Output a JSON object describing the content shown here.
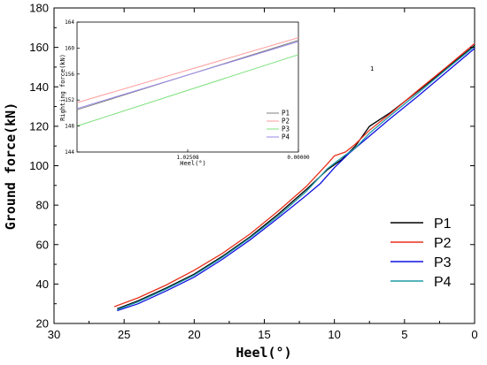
{
  "chart_data": [
    {
      "type": "line",
      "title": "",
      "xlabel": "Heel(°)",
      "ylabel": "Ground force(kN)",
      "xlim": [
        30,
        0
      ],
      "ylim": [
        20,
        180
      ],
      "x_ticks": [
        "30",
        "25",
        "20",
        "15",
        "10",
        "5",
        "0"
      ],
      "y_ticks": [
        "20",
        "40",
        "60",
        "80",
        "100",
        "120",
        "140",
        "160",
        "180"
      ],
      "legend_position": "bottom-right",
      "grid": false,
      "series": [
        {
          "name": "P1",
          "color": "#000000",
          "points": [
            [
              25.5,
              27.5
            ],
            [
              24,
              31.5
            ],
            [
              22,
              38
            ],
            [
              20,
              45
            ],
            [
              18,
              54
            ],
            [
              16,
              64
            ],
            [
              14,
              75.5
            ],
            [
              12,
              88
            ],
            [
              10.5,
              98
            ],
            [
              9.5,
              103
            ],
            [
              8.5,
              110
            ],
            [
              7.5,
              120
            ],
            [
              6,
              127
            ],
            [
              4,
              138
            ],
            [
              2,
              149.5
            ],
            [
              0,
              161
            ]
          ]
        },
        {
          "name": "P2",
          "color": "#e8301c",
          "points": [
            [
              25.7,
              28.5
            ],
            [
              24,
              33
            ],
            [
              22,
              39.5
            ],
            [
              20,
              47
            ],
            [
              18,
              55.5
            ],
            [
              16,
              65.5
            ],
            [
              14,
              77
            ],
            [
              12,
              89.5
            ],
            [
              10.5,
              101
            ],
            [
              10,
              105
            ],
            [
              9.2,
              107
            ],
            [
              8.5,
              111
            ],
            [
              7.5,
              118
            ],
            [
              6,
              126.5
            ],
            [
              4,
              138.5
            ],
            [
              2,
              150
            ],
            [
              0,
              162
            ]
          ]
        },
        {
          "name": "P3",
          "color": "#1010e0",
          "points": [
            [
              25.5,
              26.5
            ],
            [
              24,
              30
            ],
            [
              22,
              36.5
            ],
            [
              20,
              43.5
            ],
            [
              18,
              52.5
            ],
            [
              16,
              62.5
            ],
            [
              14,
              73.5
            ],
            [
              12,
              85
            ],
            [
              11,
              91
            ],
            [
              10,
              99
            ],
            [
              9,
              106
            ],
            [
              8,
              112
            ],
            [
              6,
              124
            ],
            [
              4,
              135.5
            ],
            [
              2,
              147.5
            ],
            [
              0,
              159.5
            ]
          ]
        },
        {
          "name": "P4",
          "color": "#1e9aa6",
          "points": [
            [
              25.5,
              27
            ],
            [
              24,
              31
            ],
            [
              22,
              37.5
            ],
            [
              20,
              44.5
            ],
            [
              18,
              53.5
            ],
            [
              16,
              63.5
            ],
            [
              14,
              74.5
            ],
            [
              12,
              87
            ],
            [
              10.5,
              98.5
            ],
            [
              9.5,
              104
            ],
            [
              8.5,
              109
            ],
            [
              7.5,
              116.5
            ],
            [
              6,
              125.5
            ],
            [
              4,
              137
            ],
            [
              2,
              149
            ],
            [
              0,
              160.5
            ]
          ]
        }
      ]
    },
    {
      "type": "line",
      "title": "",
      "xlabel": "Heel(°)",
      "ylabel": "Righting force(kN)",
      "xlim": [
        2.05,
        0
      ],
      "ylim": [
        144,
        164
      ],
      "x_ticks": [
        "1.02508",
        "0.00000"
      ],
      "y_ticks": [
        "144",
        "148",
        "152",
        "156",
        "160",
        "164"
      ],
      "annotation": "1",
      "legend_position": "bottom-right",
      "series": [
        {
          "name": "P1",
          "color": "#808080",
          "points": [
            [
              2.05,
              150.5
            ],
            [
              0,
              161.2
            ]
          ]
        },
        {
          "name": "P2",
          "color": "#ff9d9d",
          "points": [
            [
              2.05,
              151.6
            ],
            [
              0,
              161.6
            ]
          ]
        },
        {
          "name": "P3",
          "color": "#7de07d",
          "points": [
            [
              2.05,
              148.0
            ],
            [
              0,
              159.0
            ]
          ]
        },
        {
          "name": "P4",
          "color": "#9a8ae8",
          "points": [
            [
              2.05,
              150.7
            ],
            [
              0,
              161.0
            ]
          ]
        }
      ]
    }
  ]
}
